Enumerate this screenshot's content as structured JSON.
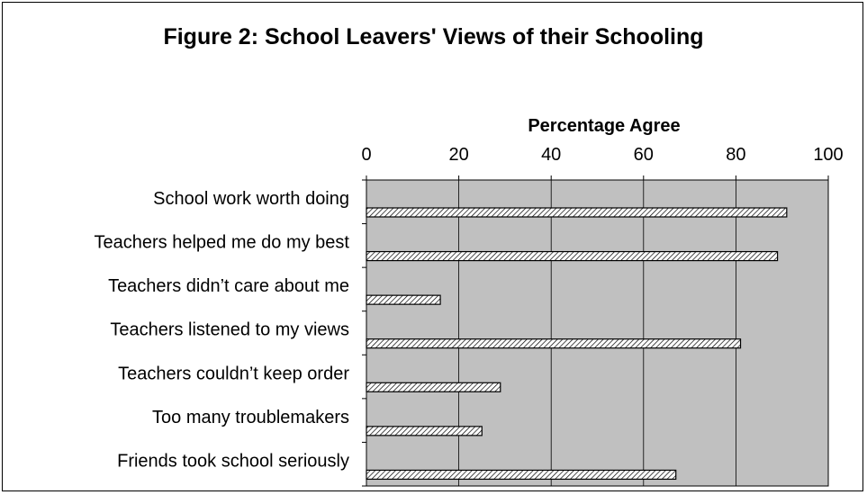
{
  "chart_data": {
    "type": "bar",
    "orientation": "horizontal",
    "title": "Figure 2: School Leavers' Views of their Schooling",
    "xlabel": "Percentage Agree",
    "ylabel": "",
    "xlim": [
      0,
      100
    ],
    "xticks": [
      "0",
      "20",
      "40",
      "60",
      "80",
      "100"
    ],
    "x_axis_position": "top",
    "grid": true,
    "legend": "none",
    "categories": [
      "School work worth doing",
      "Teachers helped me do my best",
      "Teachers didn’t care about me",
      "Teachers listened to my views",
      "Teachers couldn’t keep order",
      "Too many troublemakers",
      "Friends took school seriously"
    ],
    "values": [
      91,
      89,
      16,
      81,
      29,
      25,
      67
    ],
    "colors": {
      "plot_background": "#c0c0c0",
      "bar_fill": "#ffffff",
      "bar_hatch": "#000000",
      "gridline": "#000000",
      "text": "#000000"
    }
  }
}
